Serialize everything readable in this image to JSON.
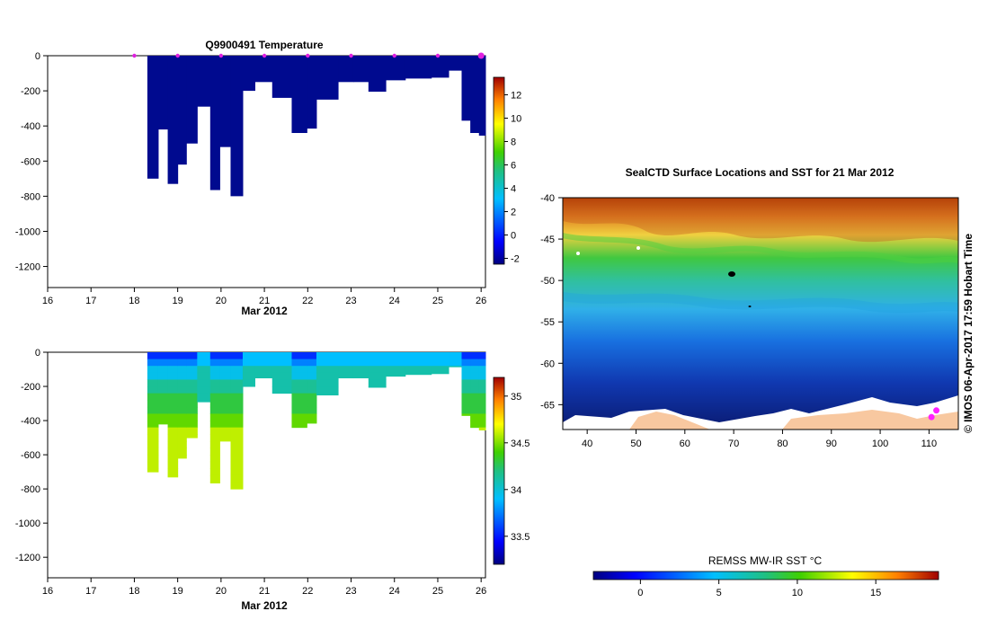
{
  "chart_data": [
    {
      "type": "heatmap",
      "title": "Q9900491  Temperature",
      "xlabel": "Mar 2012",
      "xlim": [
        16,
        26.1
      ],
      "ylim": [
        -1320,
        0
      ],
      "x_ticks": [
        "16",
        "17",
        "18",
        "19",
        "20",
        "21",
        "22",
        "23",
        "24",
        "25",
        "26"
      ],
      "y_ticks": [
        "0",
        "-200",
        "-400",
        "-600",
        "-800",
        "-1000",
        "-1200"
      ],
      "colorbar_ticks": [
        "-2",
        "0",
        "2",
        "4",
        "6",
        "8",
        "10",
        "12"
      ],
      "colorbar_range": [
        -2.5,
        13.5
      ],
      "profile_markers_x": [
        18,
        19,
        20,
        21,
        22,
        23,
        24,
        25,
        26
      ],
      "profiles": [
        {
          "x": 18.3,
          "w": 0.25,
          "depth": 700
        },
        {
          "x": 18.55,
          "w": 0.22,
          "depth": 420
        },
        {
          "x": 18.77,
          "w": 0.23,
          "depth": 730
        },
        {
          "x": 19.0,
          "w": 0.2,
          "depth": 620
        },
        {
          "x": 19.2,
          "w": 0.25,
          "depth": 500
        },
        {
          "x": 19.45,
          "w": 0.3,
          "depth": 290
        },
        {
          "x": 19.75,
          "w": 0.22,
          "depth": 765
        },
        {
          "x": 19.97,
          "w": 0.25,
          "depth": 520
        },
        {
          "x": 20.22,
          "w": 0.28,
          "depth": 800
        },
        {
          "x": 20.5,
          "w": 0.28,
          "depth": 200
        },
        {
          "x": 20.78,
          "w": 0.4,
          "depth": 150
        },
        {
          "x": 21.18,
          "w": 0.45,
          "depth": 240
        },
        {
          "x": 21.63,
          "w": 0.35,
          "depth": 440
        },
        {
          "x": 21.98,
          "w": 0.22,
          "depth": 415
        },
        {
          "x": 22.2,
          "w": 0.5,
          "depth": 250
        },
        {
          "x": 22.7,
          "w": 0.35,
          "depth": 150
        },
        {
          "x": 23.05,
          "w": 0.35,
          "depth": 150
        },
        {
          "x": 23.4,
          "w": 0.4,
          "depth": 205
        },
        {
          "x": 23.8,
          "w": 0.45,
          "depth": 140
        },
        {
          "x": 24.25,
          "w": 0.6,
          "depth": 130
        },
        {
          "x": 24.85,
          "w": 0.4,
          "depth": 125
        },
        {
          "x": 25.25,
          "w": 0.3,
          "depth": 85
        },
        {
          "x": 25.55,
          "w": 0.2,
          "depth": 370
        },
        {
          "x": 25.75,
          "w": 0.2,
          "depth": 440
        },
        {
          "x": 25.95,
          "w": 0.15,
          "depth": 455
        }
      ]
    },
    {
      "type": "heatmap",
      "title": "",
      "xlabel": "Mar 2012",
      "xlim": [
        16,
        26.1
      ],
      "ylim": [
        -1320,
        0
      ],
      "x_ticks": [
        "16",
        "17",
        "18",
        "19",
        "20",
        "21",
        "22",
        "23",
        "24",
        "25",
        "26"
      ],
      "y_ticks": [
        "0",
        "-200",
        "-400",
        "-600",
        "-800",
        "-1000",
        "-1200"
      ],
      "colorbar_ticks": [
        "33.5",
        "34",
        "34.5",
        "35"
      ],
      "colorbar_range": [
        33.2,
        35.2
      ]
    },
    {
      "type": "heatmap",
      "title": "SealCTD Surface Locations and SST for 21 Mar 2012",
      "xlim": [
        35,
        116
      ],
      "ylim": [
        -68,
        -40
      ],
      "x_ticks": [
        "40",
        "50",
        "60",
        "70",
        "80",
        "90",
        "100",
        "110"
      ],
      "y_ticks": [
        "-40",
        "-45",
        "-50",
        "-55",
        "-60",
        "-65"
      ],
      "colorbar_label": "REMSS MW-IR SST °C",
      "colorbar_ticks": [
        "0",
        "5",
        "10",
        "15"
      ],
      "colorbar_range": [
        -3,
        19
      ],
      "seal_locations": [
        {
          "lon": 110.5,
          "lat": -66.5
        },
        {
          "lon": 111.5,
          "lat": -65.7
        }
      ],
      "credit": "©  IMOS 06-Apr-2017 17:59 Hobart Time"
    }
  ]
}
